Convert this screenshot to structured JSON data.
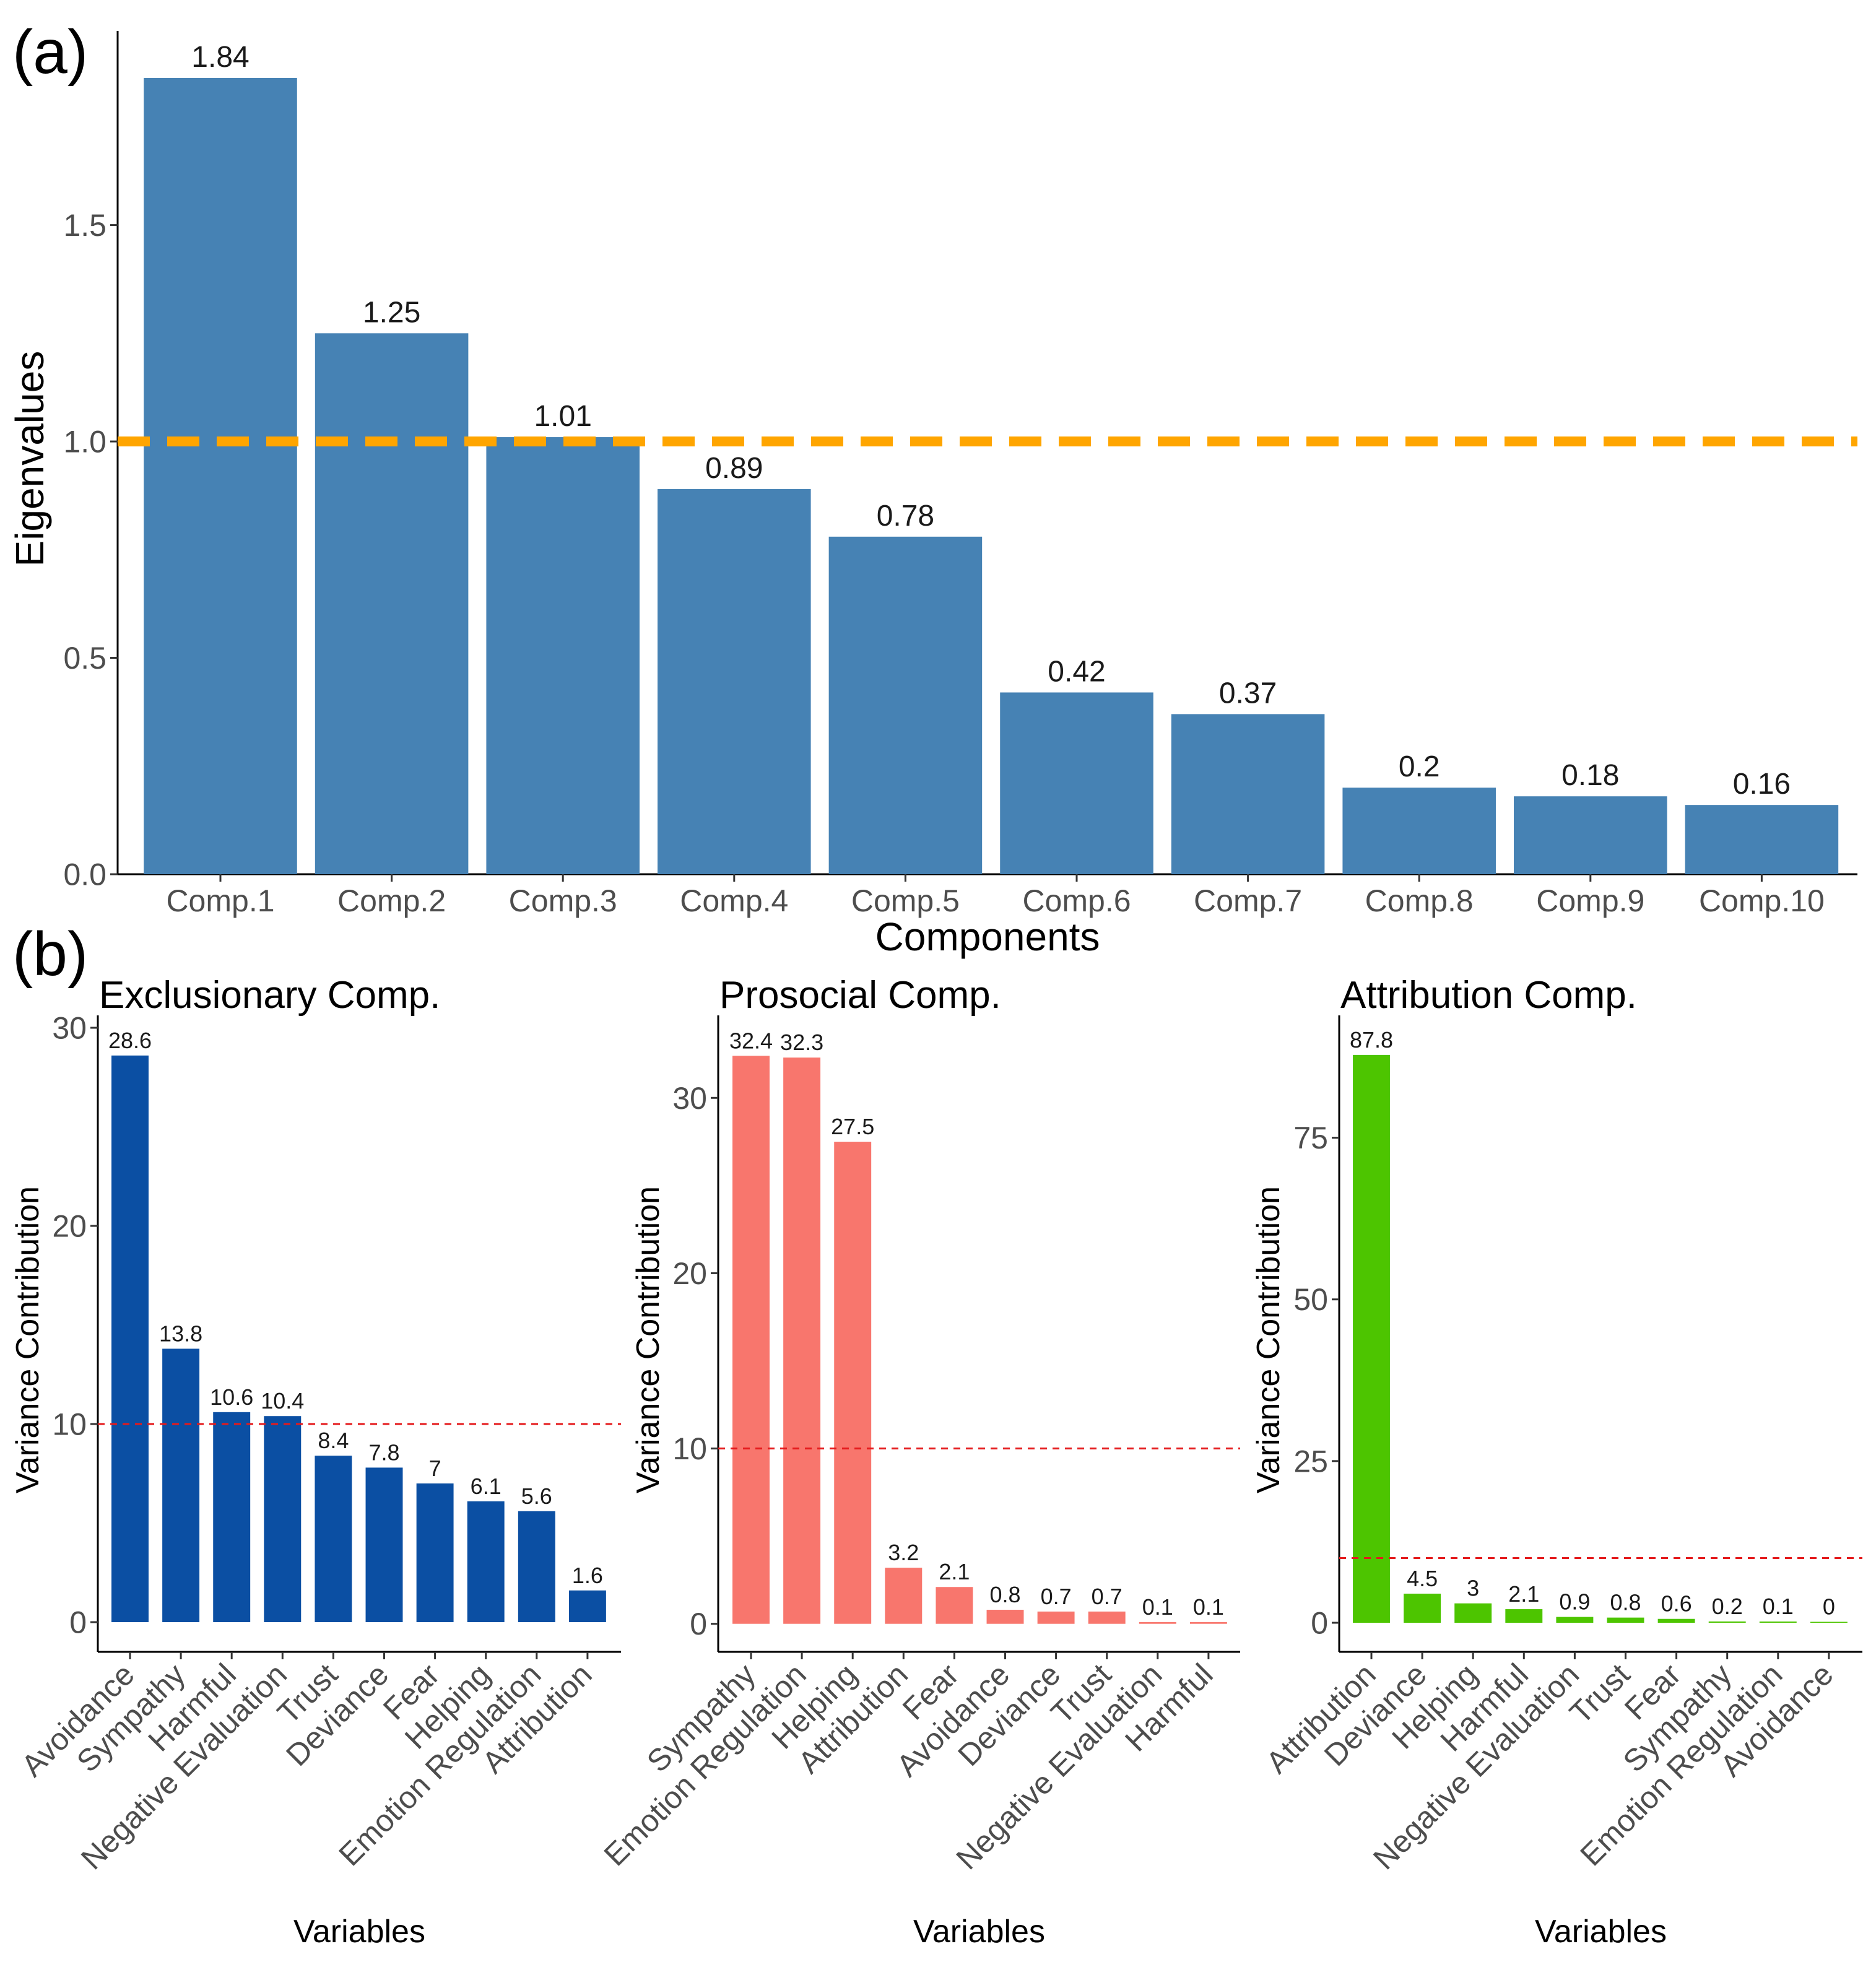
{
  "figure": {
    "panel_a_tag": "(a)",
    "panel_b_tag": "(b)"
  },
  "chart_data": [
    {
      "type": "bar",
      "id": "scree",
      "title": "",
      "xlabel": "Components",
      "ylabel": "Eigenvalues",
      "categories": [
        "Comp.1",
        "Comp.2",
        "Comp.3",
        "Comp.4",
        "Comp.5",
        "Comp.6",
        "Comp.7",
        "Comp.8",
        "Comp.9",
        "Comp.10"
      ],
      "values": [
        1.84,
        1.25,
        1.01,
        0.89,
        0.78,
        0.42,
        0.37,
        0.2,
        0.18,
        0.16
      ],
      "labels": [
        "1.84",
        "1.25",
        "1.01",
        "0.89",
        "0.78",
        "0.42",
        "0.37",
        "0.2",
        "0.18",
        "0.16"
      ],
      "ylim": [
        0,
        1.92
      ],
      "yticks": [
        0.0,
        0.5,
        1.0,
        1.5
      ],
      "ytick_labels": [
        "0.0",
        "0.5",
        "1.0",
        "1.5"
      ],
      "reference_line": {
        "value": 1.0,
        "style": "dashed",
        "color": "#FFA500"
      },
      "bar_color": "#4682B4"
    },
    {
      "type": "bar",
      "id": "exclusionary",
      "title": "Exclusionary Comp.",
      "xlabel": "Variables",
      "ylabel": "Variance Contribution",
      "categories": [
        "Avoidance",
        "Sympathy",
        "Harmful",
        "Negative Evaluation",
        "Trust",
        "Deviance",
        "Fear",
        "Helping",
        "Emotion Regulation",
        "Attribution"
      ],
      "values": [
        28.6,
        13.8,
        10.6,
        10.4,
        8.4,
        7.8,
        7,
        6.1,
        5.6,
        1.6
      ],
      "labels": [
        "28.6",
        "13.8",
        "10.6",
        "10.4",
        "8.4",
        "7.8",
        "7",
        "6.1",
        "5.6",
        "1.6"
      ],
      "ylim": [
        -1.5,
        30
      ],
      "yticks": [
        0,
        10,
        20,
        30
      ],
      "ytick_labels": [
        "0",
        "10",
        "20",
        "30"
      ],
      "reference_line": {
        "value": 10,
        "style": "dashed",
        "color": "#E41A1C"
      },
      "bar_color": "#0B4FA3"
    },
    {
      "type": "bar",
      "id": "prosocial",
      "title": "Prosocial Comp.",
      "xlabel": "Variables",
      "ylabel": "Variance Contribution",
      "categories": [
        "Sympathy",
        "Emotion Regulation",
        "Helping",
        "Attribution",
        "Fear",
        "Avoidance",
        "Deviance",
        "Trust",
        "Negative Evaluation",
        "Harmful"
      ],
      "values": [
        32.4,
        32.3,
        27.5,
        3.2,
        2.1,
        0.8,
        0.7,
        0.7,
        0.1,
        0.1
      ],
      "labels": [
        "32.4",
        "32.3",
        "27.5",
        "3.2",
        "2.1",
        "0.8",
        "0.7",
        "0.7",
        "0.1",
        "0.1"
      ],
      "ylim": [
        -1.6,
        34
      ],
      "yticks": [
        0,
        10,
        20,
        30
      ],
      "ytick_labels": [
        "0",
        "10",
        "20",
        "30"
      ],
      "reference_line": {
        "value": 10,
        "style": "dashed",
        "color": "#E41A1C"
      },
      "bar_color": "#F8766D"
    },
    {
      "type": "bar",
      "id": "attribution",
      "title": "Attribution Comp.",
      "xlabel": "Variables",
      "ylabel": "Variance Contribution",
      "categories": [
        "Attribution",
        "Deviance",
        "Helping",
        "Harmful",
        "Negative Evaluation",
        "Trust",
        "Fear",
        "Sympathy",
        "Emotion Regulation",
        "Avoidance"
      ],
      "values": [
        87.8,
        4.5,
        3,
        2.1,
        0.9,
        0.8,
        0.6,
        0.2,
        0.1,
        0
      ],
      "labels": [
        "87.8",
        "4.5",
        "3",
        "2.1",
        "0.9",
        "0.8",
        "0.6",
        "0.2",
        "0.1",
        "0"
      ],
      "ylim": [
        -4.5,
        92
      ],
      "yticks": [
        0,
        25,
        50,
        75
      ],
      "ytick_labels": [
        "0",
        "25",
        "50",
        "75"
      ],
      "reference_line": {
        "value": 10,
        "style": "dashed",
        "color": "#E41A1C"
      },
      "bar_color": "#4DC500"
    }
  ]
}
